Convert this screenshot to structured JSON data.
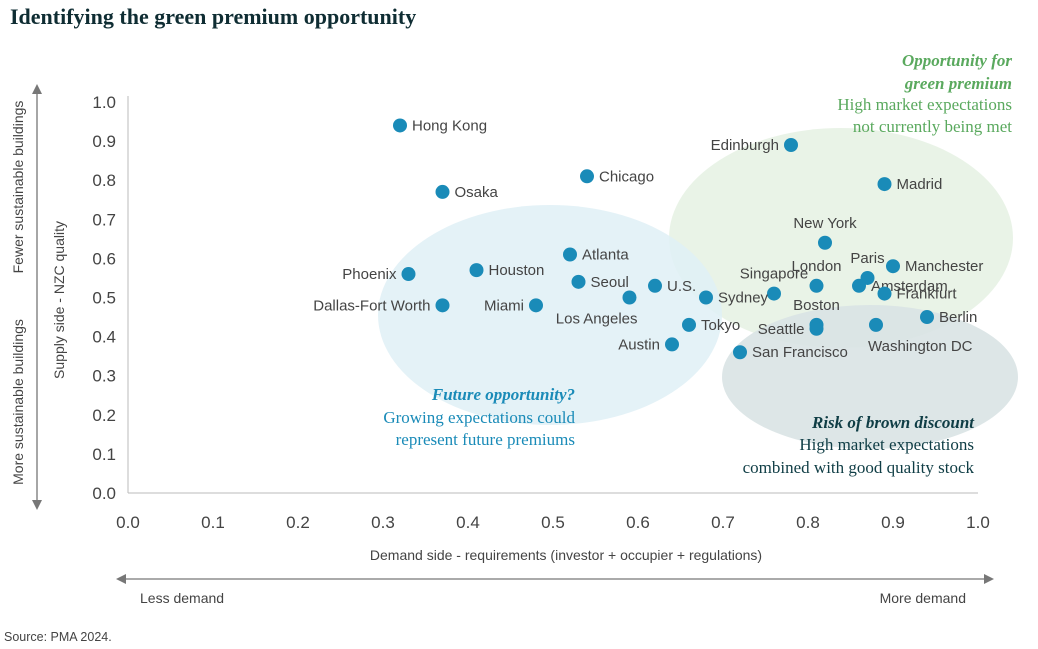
{
  "title": "Identifying the green premium opportunity",
  "source": "Source: PMA 2024.",
  "colors": {
    "point": "#1a8bb8",
    "green_text": "#5aa95e",
    "blue_text": "#1a8bb8",
    "dark_text": "#0f3d45",
    "green_zone": "#e5f1e3",
    "blue_zone": "#dff0f6",
    "grey_zone": "#d9e3e4",
    "axis": "#bbbbbb",
    "arrow": "#777777",
    "label": "#444444",
    "title": "#0f2d33"
  },
  "y_axis_side": {
    "top_label": "Fewer sustainable buildings",
    "bottom_label": "More sustainable buildings"
  },
  "x_axis_side": {
    "left_label": "Less demand",
    "right_label": "More demand"
  },
  "annotations": {
    "green": {
      "title_lines": [
        "Opportunity for",
        "green premium"
      ],
      "body_lines": [
        "High market expectations",
        "not currently being met"
      ]
    },
    "blue": {
      "title_lines": [
        "Future opportunity?"
      ],
      "body_lines": [
        "Growing expectations could",
        "represent future premiums"
      ]
    },
    "grey": {
      "title_lines": [
        "Risk of brown discount"
      ],
      "body_lines": [
        "High market expectations",
        "combined with good quality stock"
      ]
    }
  },
  "chart_data": {
    "type": "scatter",
    "title": "Identifying the green premium opportunity",
    "xlabel": "Demand side - requirements (investor + occupier + regulations)",
    "ylabel": "Supply side - NZC quality",
    "xlim": [
      0,
      1
    ],
    "ylim": [
      0,
      1
    ],
    "x_ticks": [
      "0.0",
      "0.1",
      "0.2",
      "0.3",
      "0.4",
      "0.5",
      "0.6",
      "0.7",
      "0.8",
      "0.9",
      "1.0"
    ],
    "y_ticks": [
      "0.0",
      "0.1",
      "0.2",
      "0.3",
      "0.4",
      "0.5",
      "0.6",
      "0.7",
      "0.8",
      "0.9",
      "1.0"
    ],
    "grid": false,
    "points": [
      {
        "label": "Hong Kong",
        "x": 0.32,
        "y": 0.94,
        "pos": "right"
      },
      {
        "label": "Osaka",
        "x": 0.37,
        "y": 0.77,
        "pos": "right"
      },
      {
        "label": "Chicago",
        "x": 0.54,
        "y": 0.81,
        "pos": "right"
      },
      {
        "label": "Edinburgh",
        "x": 0.78,
        "y": 0.89,
        "pos": "left"
      },
      {
        "label": "Madrid",
        "x": 0.89,
        "y": 0.79,
        "pos": "right"
      },
      {
        "label": "New York",
        "x": 0.82,
        "y": 0.64,
        "pos": "above"
      },
      {
        "label": "Atlanta",
        "x": 0.52,
        "y": 0.61,
        "pos": "right"
      },
      {
        "label": "Phoenix",
        "x": 0.33,
        "y": 0.56,
        "pos": "left"
      },
      {
        "label": "Houston",
        "x": 0.41,
        "y": 0.57,
        "pos": "right"
      },
      {
        "label": "Seoul",
        "x": 0.53,
        "y": 0.54,
        "pos": "right"
      },
      {
        "label": "U.S.",
        "x": 0.62,
        "y": 0.53,
        "pos": "right"
      },
      {
        "label": "Paris",
        "x": 0.87,
        "y": 0.55,
        "pos": "above"
      },
      {
        "label": "Manchester",
        "x": 0.9,
        "y": 0.58,
        "pos": "right"
      },
      {
        "label": "Singapore",
        "x": 0.76,
        "y": 0.51,
        "pos": "above"
      },
      {
        "label": "London",
        "x": 0.81,
        "y": 0.53,
        "pos": "above"
      },
      {
        "label": "Amsterdam",
        "x": 0.86,
        "y": 0.53,
        "pos": "right"
      },
      {
        "label": "Frankfurt",
        "x": 0.89,
        "y": 0.51,
        "pos": "right"
      },
      {
        "label": "Dallas-Fort Worth",
        "x": 0.37,
        "y": 0.48,
        "pos": "left"
      },
      {
        "label": "Miami",
        "x": 0.48,
        "y": 0.48,
        "pos": "left"
      },
      {
        "label": "Los Angeles",
        "x": 0.59,
        "y": 0.5,
        "pos": "belowleft"
      },
      {
        "label": "Sydney",
        "x": 0.68,
        "y": 0.5,
        "pos": "right"
      },
      {
        "label": "Boston",
        "x": 0.81,
        "y": 0.43,
        "pos": "above"
      },
      {
        "label": "Berlin",
        "x": 0.94,
        "y": 0.45,
        "pos": "right"
      },
      {
        "label": "Tokyo",
        "x": 0.66,
        "y": 0.43,
        "pos": "right"
      },
      {
        "label": "Seattle",
        "x": 0.81,
        "y": 0.42,
        "pos": "left"
      },
      {
        "label": "Washington DC",
        "x": 0.88,
        "y": 0.43,
        "pos": "below"
      },
      {
        "label": "Austin",
        "x": 0.64,
        "y": 0.38,
        "pos": "left"
      },
      {
        "label": "San Francisco",
        "x": 0.72,
        "y": 0.36,
        "pos": "right"
      }
    ]
  }
}
